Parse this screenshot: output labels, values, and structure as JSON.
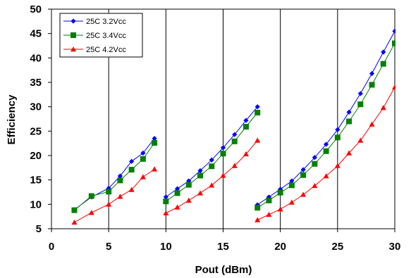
{
  "chart_data": {
    "type": "line",
    "title": "",
    "xlabel": "Pout (dBm)",
    "ylabel": "Efficiency",
    "xlim": [
      0,
      30
    ],
    "ylim": [
      5,
      50
    ],
    "xticks": [
      0,
      5,
      10,
      15,
      20,
      25,
      30
    ],
    "yticks": [
      5,
      10,
      15,
      20,
      25,
      30,
      35,
      40,
      45,
      50
    ],
    "grid": "vertical major lines",
    "legend_position": "top-left",
    "series": [
      {
        "name": "25C 3.2Vcc",
        "color": "#0000ff",
        "marker": "diamond",
        "segments": [
          [
            [
              2,
              8.9
            ],
            [
              3.5,
              11.5
            ],
            [
              5,
              13.3
            ],
            [
              6,
              15.8
            ],
            [
              7,
              18.8
            ],
            [
              8,
              20.5
            ],
            [
              9,
              23.5
            ]
          ],
          [
            [
              10,
              11.5
            ],
            [
              11,
              13.2
            ],
            [
              12,
              14.8
            ],
            [
              13,
              16.9
            ],
            [
              14,
              19.1
            ],
            [
              15,
              21.6
            ],
            [
              16,
              24.3
            ],
            [
              17,
              27.2
            ],
            [
              18,
              30.0
            ]
          ],
          [
            [
              18,
              9.9
            ],
            [
              19,
              11.5
            ],
            [
              20,
              13.1
            ],
            [
              21,
              14.8
            ],
            [
              22,
              17.1
            ],
            [
              23,
              19.6
            ],
            [
              24,
              22.3
            ],
            [
              25,
              25.3
            ],
            [
              26,
              28.9
            ],
            [
              27,
              32.7
            ],
            [
              28,
              36.8
            ],
            [
              29,
              41.2
            ],
            [
              30,
              45.5
            ]
          ]
        ]
      },
      {
        "name": "25C 3.4Vcc",
        "color": "#008000",
        "marker": "square",
        "segments": [
          [
            [
              2,
              8.8
            ],
            [
              3.5,
              11.7
            ],
            [
              5,
              12.6
            ],
            [
              6,
              14.9
            ],
            [
              7,
              17.1
            ],
            [
              8,
              19.3
            ],
            [
              9,
              22.6
            ]
          ],
          [
            [
              10,
              10.6
            ],
            [
              11,
              12.3
            ],
            [
              12,
              14.0
            ],
            [
              13,
              15.9
            ],
            [
              14,
              17.8
            ],
            [
              15,
              20.4
            ],
            [
              16,
              22.9
            ],
            [
              17,
              25.9
            ],
            [
              18,
              28.8
            ]
          ],
          [
            [
              18,
              9.3
            ],
            [
              19,
              10.8
            ],
            [
              20,
              12.4
            ],
            [
              21,
              13.9
            ],
            [
              22,
              16.0
            ],
            [
              23,
              18.3
            ],
            [
              24,
              20.9
            ],
            [
              25,
              23.7
            ],
            [
              26,
              27.0
            ],
            [
              27,
              30.5
            ],
            [
              28,
              34.5
            ],
            [
              29,
              38.8
            ],
            [
              30,
              43.0
            ]
          ]
        ]
      },
      {
        "name": "25C 4.2Vcc",
        "color": "#ff0000",
        "marker": "triangle",
        "segments": [
          [
            [
              2,
              6.3
            ],
            [
              3.5,
              8.3
            ],
            [
              5,
              10.0
            ],
            [
              6,
              11.6
            ],
            [
              7,
              13.0
            ],
            [
              8,
              15.6
            ],
            [
              9,
              17.2
            ]
          ],
          [
            [
              10,
              8.2
            ],
            [
              11,
              9.4
            ],
            [
              12,
              10.8
            ],
            [
              13,
              12.3
            ],
            [
              14,
              13.9
            ],
            [
              15,
              15.9
            ],
            [
              16,
              17.9
            ],
            [
              17,
              20.3
            ],
            [
              18,
              23.1
            ]
          ],
          [
            [
              18,
              6.8
            ],
            [
              19,
              7.9
            ],
            [
              20,
              9.0
            ],
            [
              21,
              10.4
            ],
            [
              22,
              12.0
            ],
            [
              23,
              13.8
            ],
            [
              24,
              15.8
            ],
            [
              25,
              17.9
            ],
            [
              26,
              20.5
            ],
            [
              27,
              23.1
            ],
            [
              28,
              26.4
            ],
            [
              29,
              29.8
            ],
            [
              30,
              34.0
            ]
          ]
        ]
      }
    ]
  }
}
